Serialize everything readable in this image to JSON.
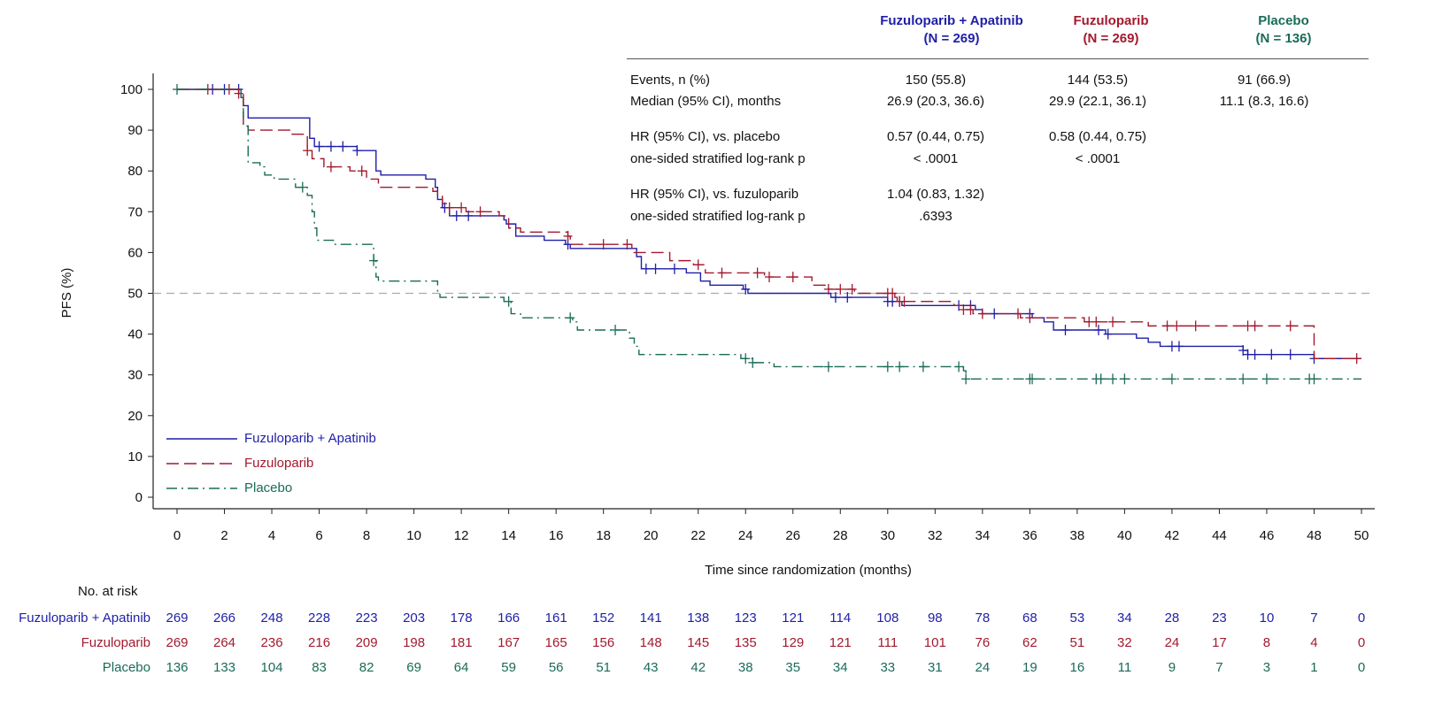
{
  "colors": {
    "combo": "#1f1fa8",
    "fuz": "#a3192e",
    "placebo": "#1a6b57",
    "ref": "#aaaaaa",
    "axis": "#222222"
  },
  "chart_data": {
    "type": "line",
    "subtype": "kaplan-meier",
    "xlabel": "Time since randomization (months)",
    "ylabel": "PFS (%)",
    "xlim": [
      0,
      50
    ],
    "ylim": [
      0,
      100
    ],
    "xticks": [
      0,
      2,
      4,
      6,
      8,
      10,
      12,
      14,
      16,
      18,
      20,
      22,
      24,
      26,
      28,
      30,
      32,
      34,
      36,
      38,
      40,
      42,
      44,
      46,
      48,
      50
    ],
    "yticks": [
      0,
      10,
      20,
      30,
      40,
      50,
      60,
      70,
      80,
      90,
      100
    ],
    "reference_line_y": 50,
    "legend": [
      "Fuzuloparib + Apatinib",
      "Fuzuloparib",
      "Placebo"
    ],
    "series": [
      {
        "name": "Fuzuloparib + Apatinib",
        "style": "solid",
        "steps": [
          [
            0,
            100
          ],
          [
            2.7,
            98
          ],
          [
            2.8,
            96
          ],
          [
            3.0,
            93
          ],
          [
            5.5,
            93
          ],
          [
            5.6,
            88
          ],
          [
            5.8,
            86
          ],
          [
            7.6,
            85
          ],
          [
            8.4,
            80
          ],
          [
            8.6,
            79
          ],
          [
            10.5,
            78
          ],
          [
            10.9,
            76
          ],
          [
            11.0,
            73
          ],
          [
            11.2,
            71
          ],
          [
            11.5,
            69
          ],
          [
            13.8,
            68
          ],
          [
            13.9,
            67
          ],
          [
            14.3,
            64
          ],
          [
            15.5,
            63
          ],
          [
            16.4,
            62
          ],
          [
            16.6,
            61
          ],
          [
            19.4,
            59
          ],
          [
            19.6,
            56
          ],
          [
            21.5,
            55
          ],
          [
            22.1,
            53
          ],
          [
            22.5,
            52
          ],
          [
            23.9,
            51
          ],
          [
            24.1,
            50
          ],
          [
            27.6,
            49
          ],
          [
            30.0,
            48
          ],
          [
            30.6,
            47
          ],
          [
            33.7,
            46
          ],
          [
            34.0,
            45
          ],
          [
            36.1,
            44
          ],
          [
            36.6,
            43
          ],
          [
            37.0,
            41
          ],
          [
            39.0,
            41
          ],
          [
            39.2,
            40
          ],
          [
            40.5,
            39
          ],
          [
            41.0,
            38
          ],
          [
            41.5,
            37
          ],
          [
            45.0,
            36
          ],
          [
            45.2,
            35
          ],
          [
            48.0,
            34
          ],
          [
            50.0,
            34
          ]
        ],
        "censors": [
          1.5,
          2.0,
          2.6,
          6.0,
          6.5,
          7.0,
          7.6,
          11.3,
          11.8,
          12.3,
          16.5,
          19.8,
          20.2,
          21.0,
          24.0,
          27.8,
          28.3,
          30.0,
          30.2,
          30.5,
          33.0,
          33.5,
          34.5,
          36.0,
          37.5,
          38.9,
          39.3,
          42.0,
          42.3,
          45.0,
          45.2,
          45.5,
          46.2,
          47.0,
          48.0
        ]
      },
      {
        "name": "Fuzuloparib",
        "style": "dashed",
        "steps": [
          [
            0,
            100
          ],
          [
            2.6,
            99
          ],
          [
            2.8,
            91
          ],
          [
            3.0,
            90
          ],
          [
            4.8,
            89
          ],
          [
            5.5,
            85
          ],
          [
            5.7,
            83
          ],
          [
            6.2,
            81
          ],
          [
            7.3,
            80
          ],
          [
            8.0,
            78
          ],
          [
            8.5,
            76
          ],
          [
            10.8,
            75
          ],
          [
            11.0,
            74
          ],
          [
            11.2,
            72
          ],
          [
            11.4,
            71
          ],
          [
            12.2,
            70
          ],
          [
            13.6,
            69
          ],
          [
            14.0,
            66
          ],
          [
            14.5,
            65
          ],
          [
            16.5,
            64
          ],
          [
            16.6,
            62
          ],
          [
            18.7,
            62
          ],
          [
            19.2,
            60
          ],
          [
            20.8,
            58
          ],
          [
            21.8,
            57
          ],
          [
            22.3,
            55
          ],
          [
            24.8,
            54
          ],
          [
            26.8,
            52
          ],
          [
            27.5,
            51
          ],
          [
            28.6,
            50
          ],
          [
            30.3,
            49
          ],
          [
            30.4,
            48
          ],
          [
            32.8,
            47
          ],
          [
            33.2,
            46
          ],
          [
            33.6,
            45
          ],
          [
            35.6,
            44
          ],
          [
            38.3,
            43
          ],
          [
            41.0,
            42
          ],
          [
            48.0,
            34
          ],
          [
            50.0,
            34
          ]
        ],
        "censors": [
          1.3,
          2.2,
          2.6,
          5.5,
          6.5,
          7.8,
          11.5,
          12.0,
          12.8,
          16.5,
          18.0,
          19.0,
          22.0,
          23.0,
          24.5,
          25.0,
          26.0,
          27.5,
          28.0,
          28.5,
          30.0,
          30.2,
          30.5,
          30.7,
          33.2,
          33.5,
          34.0,
          35.5,
          36.0,
          38.5,
          38.8,
          39.5,
          41.8,
          42.2,
          43.0,
          45.2,
          45.5,
          47.0,
          49.8
        ]
      },
      {
        "name": "Placebo",
        "style": "dashdot",
        "steps": [
          [
            0,
            100
          ],
          [
            2.7,
            98
          ],
          [
            2.8,
            91
          ],
          [
            3.0,
            82
          ],
          [
            3.5,
            81
          ],
          [
            3.7,
            79
          ],
          [
            4.1,
            78
          ],
          [
            5.0,
            76
          ],
          [
            5.5,
            74
          ],
          [
            5.7,
            70
          ],
          [
            5.8,
            66
          ],
          [
            5.9,
            63
          ],
          [
            6.6,
            62
          ],
          [
            8.3,
            58
          ],
          [
            8.4,
            54
          ],
          [
            8.5,
            53
          ],
          [
            11.0,
            50
          ],
          [
            11.1,
            49
          ],
          [
            13.8,
            48
          ],
          [
            14.1,
            45
          ],
          [
            14.5,
            44
          ],
          [
            16.7,
            43
          ],
          [
            16.9,
            41
          ],
          [
            19.1,
            39
          ],
          [
            19.3,
            37
          ],
          [
            19.5,
            35
          ],
          [
            23.8,
            34
          ],
          [
            24.3,
            33
          ],
          [
            25.2,
            32
          ],
          [
            33.2,
            31
          ],
          [
            33.3,
            29
          ],
          [
            50.0,
            29
          ]
        ],
        "censors": [
          0.0,
          5.3,
          8.3,
          14.0,
          16.6,
          18.5,
          24.0,
          24.3,
          27.5,
          30.0,
          30.5,
          31.5,
          33.0,
          33.3,
          36.0,
          36.1,
          38.8,
          39.0,
          39.5,
          40.0,
          42.0,
          45.0,
          46.0,
          47.8,
          48.0
        ]
      }
    ]
  },
  "header": {
    "col1_name": "Fuzuloparib + Apatinib",
    "col1_n": "(N = 269)",
    "col2_name": "Fuzuloparib",
    "col2_n": "(N = 269)",
    "col3_name": "Placebo",
    "col3_n": "(N = 136)"
  },
  "stats_rows": [
    {
      "label": "Events, n (%)",
      "v1": "150 (55.8)",
      "v2": "144 (53.5)",
      "v3": "91 (66.9)"
    },
    {
      "label": "Median (95% CI), months",
      "v1": "26.9 (20.3, 36.6)",
      "v2": "29.9 (22.1, 36.1)",
      "v3": "11.1 (8.3, 16.6)"
    },
    {
      "label": "HR (95% CI), vs. placebo",
      "v1": "0.57 (0.44, 0.75)",
      "v2": "0.58 (0.44, 0.75)",
      "v3": ""
    },
    {
      "label": "one-sided stratified log-rank p",
      "v1": "< .0001",
      "v2": "< .0001",
      "v3": ""
    },
    {
      "label": "HR (95% CI), vs. fuzuloparib",
      "v1": "1.04 (0.83, 1.32)",
      "v2": "",
      "v3": ""
    },
    {
      "label": "one-sided stratified log-rank p",
      "v1": ".6393",
      "v2": "",
      "v3": ""
    }
  ],
  "risk_table": {
    "title": "No. at risk",
    "rows": [
      {
        "name": "Fuzuloparib + Apatinib",
        "values": [
          "269",
          "266",
          "248",
          "228",
          "223",
          "203",
          "178",
          "166",
          "161",
          "152",
          "141",
          "138",
          "123",
          "121",
          "114",
          "108",
          "98",
          "78",
          "68",
          "53",
          "34",
          "28",
          "23",
          "10",
          "7",
          "0"
        ]
      },
      {
        "name": "Fuzuloparib",
        "values": [
          "269",
          "264",
          "236",
          "216",
          "209",
          "198",
          "181",
          "167",
          "165",
          "156",
          "148",
          "145",
          "135",
          "129",
          "121",
          "111",
          "101",
          "76",
          "62",
          "51",
          "32",
          "24",
          "17",
          "8",
          "4",
          "0"
        ]
      },
      {
        "name": "Placebo",
        "values": [
          "136",
          "133",
          "104",
          "83",
          "82",
          "69",
          "64",
          "59",
          "56",
          "51",
          "43",
          "42",
          "38",
          "35",
          "34",
          "33",
          "31",
          "24",
          "19",
          "16",
          "11",
          "9",
          "7",
          "3",
          "1",
          "0"
        ]
      }
    ]
  }
}
